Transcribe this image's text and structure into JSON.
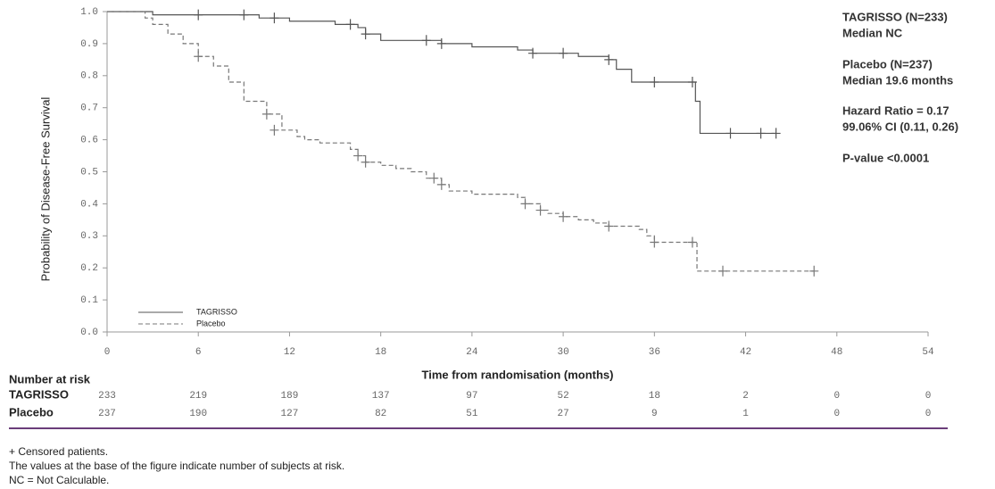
{
  "chart_data": {
    "type": "step",
    "x_label": "Time from randomisation (months)",
    "y_label": "Probability of Disease-Free Survival",
    "xlim": [
      0,
      54
    ],
    "ylim": [
      0,
      1
    ],
    "xticks": [
      0,
      6,
      12,
      18,
      24,
      30,
      36,
      42,
      48,
      54
    ],
    "yticks": [
      {
        "value": 0,
        "label": "0.0"
      },
      0.1,
      0.2,
      0.3,
      0.4,
      0.5,
      0.6,
      0.7,
      0.8,
      0.9,
      {
        "value": 1,
        "label": "1.0"
      }
    ],
    "legend": "lower left",
    "series": [
      {
        "name": "TAGRISSO",
        "color": "#555555",
        "dash": "solid",
        "x": [
          0,
          3,
          10,
          12,
          15,
          16.5,
          17,
          18,
          22,
          24,
          27,
          28,
          31,
          33,
          33.5,
          34.5,
          38.7,
          39,
          44
        ],
        "values": [
          1,
          0.99,
          0.98,
          0.97,
          0.96,
          0.95,
          0.93,
          0.91,
          0.9,
          0.89,
          0.88,
          0.87,
          0.86,
          0.85,
          0.82,
          0.78,
          0.72,
          0.62,
          0.62
        ],
        "censored_x": [
          6,
          9,
          11,
          16,
          17,
          21,
          22,
          28,
          30,
          33,
          36,
          38.5,
          41,
          43,
          44
        ],
        "censored_y": [
          0.99,
          0.99,
          0.98,
          0.96,
          0.93,
          0.91,
          0.9,
          0.87,
          0.87,
          0.85,
          0.78,
          0.78,
          0.62,
          0.62,
          0.62
        ]
      },
      {
        "name": "Placebo",
        "color": "#777777",
        "dash": "dashed",
        "x": [
          0,
          2.5,
          3,
          4,
          5,
          6,
          7,
          8,
          9,
          10.5,
          11.5,
          12.5,
          13,
          14,
          16,
          16.5,
          17,
          18,
          19,
          20,
          21,
          22,
          22.5,
          24,
          27,
          27.5,
          28.5,
          29,
          30,
          31,
          32,
          33,
          35,
          35.5,
          36,
          38.8,
          46.5
        ],
        "values": [
          1,
          0.98,
          0.96,
          0.93,
          0.9,
          0.86,
          0.83,
          0.78,
          0.72,
          0.68,
          0.63,
          0.61,
          0.6,
          0.59,
          0.57,
          0.55,
          0.53,
          0.52,
          0.51,
          0.5,
          0.48,
          0.46,
          0.44,
          0.43,
          0.42,
          0.4,
          0.38,
          0.37,
          0.36,
          0.35,
          0.34,
          0.33,
          0.32,
          0.3,
          0.28,
          0.19,
          0.19
        ],
        "censored_x": [
          6,
          10.5,
          11,
          16.5,
          17,
          21.5,
          22,
          27.5,
          28.5,
          30,
          33,
          36,
          38.5,
          40.5,
          46.5
        ],
        "censored_y": [
          0.86,
          0.68,
          0.63,
          0.55,
          0.53,
          0.48,
          0.46,
          0.4,
          0.38,
          0.36,
          0.33,
          0.28,
          0.28,
          0.19,
          0.19
        ]
      }
    ],
    "annotations": [
      "TAGRISSO (N=233)",
      "Median NC",
      "Placebo (N=237)",
      "Median 19.6 months",
      "Hazard Ratio = 0.17",
      "99.06% CI (0.11, 0.26)",
      "P-value <0.0001"
    ],
    "at_risk_title": "Number at risk",
    "at_risk": [
      {
        "name": "TAGRISSO",
        "values": [
          233,
          219,
          189,
          137,
          97,
          52,
          18,
          2,
          0,
          0
        ]
      },
      {
        "name": "Placebo",
        "values": [
          237,
          190,
          127,
          82,
          51,
          27,
          9,
          1,
          0,
          0
        ]
      }
    ],
    "footnotes": [
      "+ Censored patients.",
      "The values at the base of the figure indicate number of subjects at risk.",
      "NC = Not Calculable."
    ]
  }
}
